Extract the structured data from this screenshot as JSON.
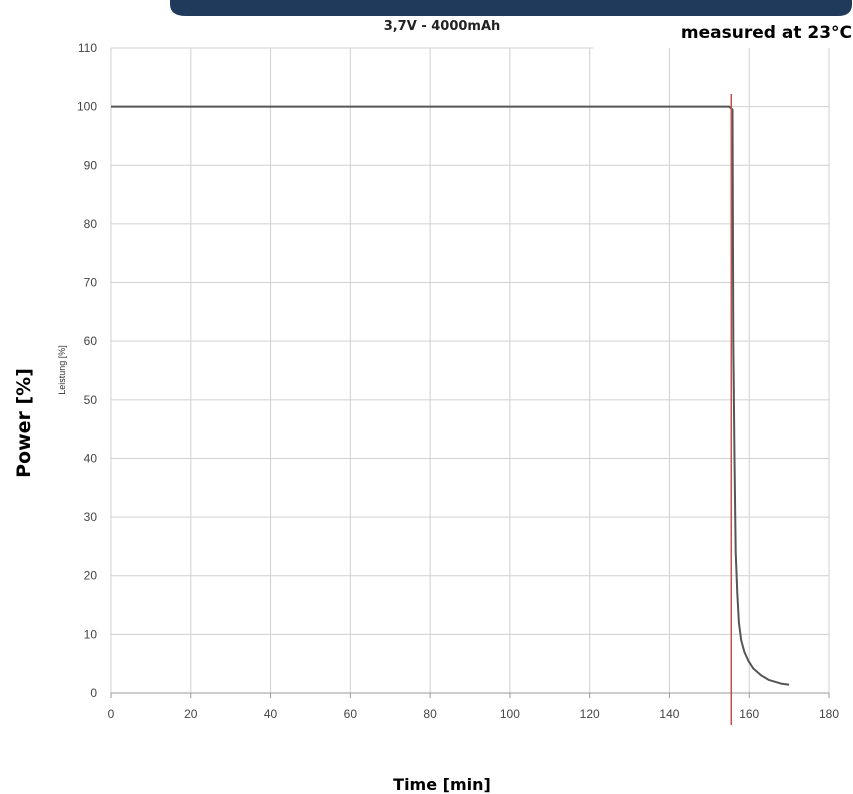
{
  "chart_data": {
    "type": "line",
    "title": "3,7V - 4000mAh",
    "annotation": "measured at 23°C",
    "xlabel": "Time [min]",
    "ylabel": "Power  [%]",
    "ylabel_secondary": "Leistung [%]",
    "xlim": [
      0,
      180
    ],
    "ylim": [
      0,
      110
    ],
    "xticks": [
      0,
      20,
      40,
      60,
      80,
      100,
      120,
      140,
      160,
      180
    ],
    "yticks": [
      0,
      10,
      20,
      30,
      40,
      50,
      60,
      70,
      80,
      90,
      100,
      110
    ],
    "grid": true,
    "marker_line_x": 155.5,
    "colors": {
      "series": "#555555",
      "marker_line": "#c0504d",
      "grid": "#d0d0d0",
      "header_band": "#1f3a5a"
    },
    "series": [
      {
        "x": [
          0,
          155,
          155.8,
          156,
          156.3,
          156.6,
          157,
          157.4,
          158,
          158.8,
          159.8,
          161,
          163,
          165,
          168,
          170
        ],
        "y": [
          100,
          100,
          99.5,
          60,
          40,
          24,
          17,
          12,
          9,
          7,
          5.5,
          4.2,
          3.0,
          2.2,
          1.6,
          1.4
        ]
      }
    ]
  }
}
